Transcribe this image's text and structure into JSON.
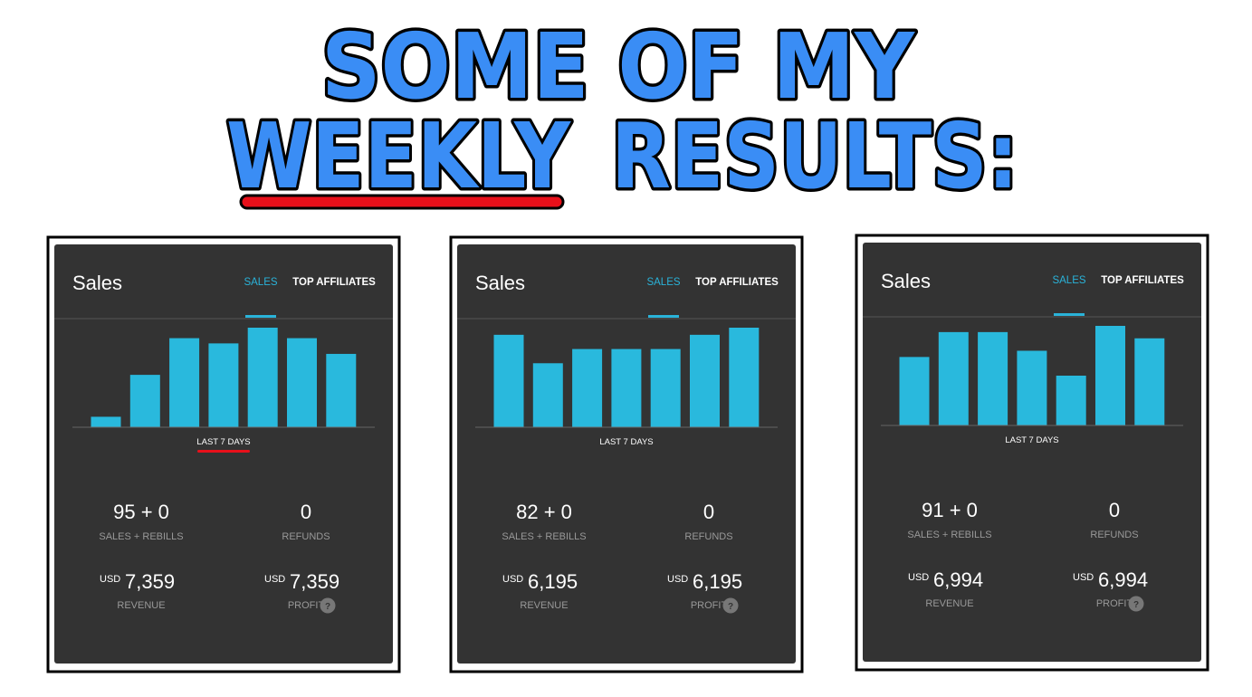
{
  "header": {
    "line1": "SOME OF MY",
    "line2_emphasis": "WEEKLY",
    "line2_rest": "RESULTS:"
  },
  "panels": [
    {
      "title": "Sales",
      "tabs": [
        "SALES",
        "TOP AFFILIATES"
      ],
      "active_tab": 0,
      "bars": [
        2,
        10,
        17,
        16,
        19,
        17,
        14
      ],
      "bar_color": "#29b9dd",
      "period": "LAST 7 DAYS",
      "period_underlined": true,
      "stats": {
        "sales": "95 + 0",
        "sales_label": "SALES + REBILLS",
        "refunds": "0",
        "refunds_label": "REFUNDS",
        "revenue_currency": "USD",
        "revenue": "7,359",
        "revenue_label": "REVENUE",
        "profit_currency": "USD",
        "profit": "7,359",
        "profit_label": "PROFIT",
        "help": "?"
      }
    },
    {
      "title": "Sales",
      "tabs": [
        "SALES",
        "TOP AFFILIATES"
      ],
      "active_tab": 0,
      "bars": [
        13,
        9,
        11,
        11,
        11,
        13,
        14
      ],
      "bar_color": "#29b9dd",
      "period": "LAST 7 DAYS",
      "period_underlined": false,
      "stats": {
        "sales": "82 + 0",
        "sales_label": "SALES + REBILLS",
        "refunds": "0",
        "refunds_label": "REFUNDS",
        "revenue_currency": "USD",
        "revenue": "6,195",
        "revenue_label": "REVENUE",
        "profit_currency": "USD",
        "profit": "6,195",
        "profit_label": "PROFIT",
        "help": "?"
      }
    },
    {
      "title": "Sales",
      "tabs": [
        "SALES",
        "TOP AFFILIATES"
      ],
      "active_tab": 0,
      "bars": [
        11,
        15,
        15,
        12,
        8,
        16,
        14
      ],
      "bar_color": "#29b9dd",
      "period": "LAST 7 DAYS",
      "period_underlined": false,
      "stats": {
        "sales": "91 + 0",
        "sales_label": "SALES + REBILLS",
        "refunds": "0",
        "refunds_label": "REFUNDS",
        "revenue_currency": "USD",
        "revenue": "6,994",
        "revenue_label": "REVENUE",
        "profit_currency": "USD",
        "profit": "6,994",
        "profit_label": "PROFIT",
        "help": "?"
      }
    }
  ]
}
